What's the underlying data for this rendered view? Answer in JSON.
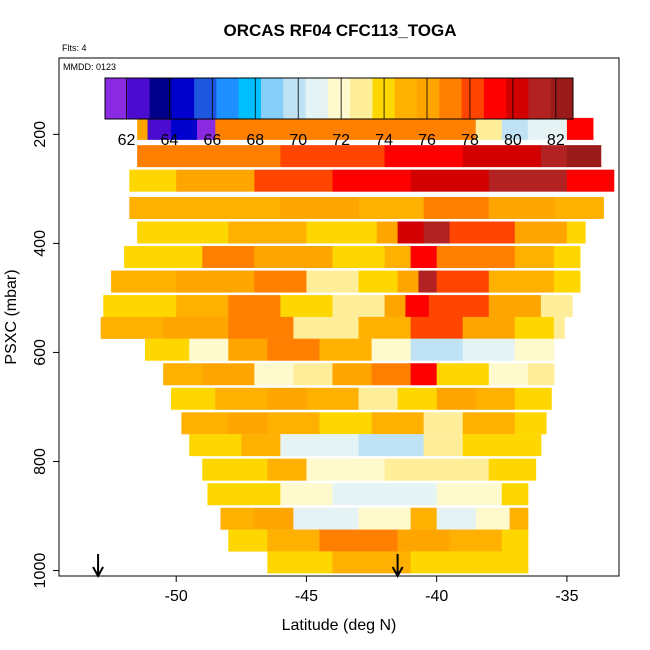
{
  "chart_data": {
    "type": "heatmap",
    "title": "ORCAS RF04 CFC113_TOGA",
    "flights_note": "Flts: 4",
    "date_note": "MMDD: 0123",
    "xlabel": "Latitude (deg N)",
    "ylabel": "PSXC (mbar)",
    "xlim": [
      -54.5,
      -33
    ],
    "ylim": [
      1010,
      60
    ],
    "xticks": [
      -50,
      -45,
      -40,
      -35
    ],
    "yticks": [
      200,
      400,
      600,
      800,
      1000
    ],
    "colorbar": {
      "min": 61,
      "max": 82.8,
      "ticks": [
        62,
        64,
        66,
        68,
        70,
        72,
        74,
        76,
        78,
        80,
        82
      ],
      "colors": [
        "#8a2be2",
        "#4b0ccf",
        "#00008b",
        "#0000cd",
        "#1e56e0",
        "#1e90ff",
        "#00bfff",
        "#87cefa",
        "#bfe3f5",
        "#e6f3f5",
        "#fffacd",
        "#ffee99",
        "#ffd700",
        "#ffb000",
        "#ffa500",
        "#ff7f00",
        "#ff4500",
        "#ff0000",
        "#d20000",
        "#b22222",
        "#9b1b1b"
      ]
    },
    "layers": [
      {
        "p": 190,
        "lat_start": -51.5,
        "lat_end": -34,
        "segments": [
          [
            -51.5,
            76.5
          ],
          [
            -51.1,
            63
          ],
          [
            -50.2,
            65
          ],
          [
            -49.2,
            62
          ],
          [
            -48.5,
            77
          ],
          [
            -43,
            77.5
          ],
          [
            -38.5,
            73
          ],
          [
            -37.5,
            69.5
          ],
          [
            -36.5,
            71
          ],
          [
            -35,
            79
          ]
        ]
      },
      {
        "p": 240,
        "lat_start": -51.5,
        "lat_end": -33.7,
        "segments": [
          [
            -51.5,
            77.2
          ],
          [
            -46,
            78
          ],
          [
            -42,
            79
          ],
          [
            -39,
            80
          ],
          [
            -36,
            81
          ],
          [
            -35,
            82.5
          ]
        ]
      },
      {
        "p": 285,
        "lat_start": -51.8,
        "lat_end": -33.2,
        "segments": [
          [
            -51.8,
            74
          ],
          [
            -50,
            76.5
          ],
          [
            -47,
            78.5
          ],
          [
            -44,
            79.5
          ],
          [
            -41,
            80.3
          ],
          [
            -38,
            81
          ],
          [
            -35,
            79.5
          ]
        ]
      },
      {
        "p": 335,
        "lat_start": -51.8,
        "lat_end": -33.6,
        "segments": [
          [
            -51.8,
            74.5
          ],
          [
            -49,
            75.5
          ],
          [
            -46,
            76.5
          ],
          [
            -43,
            75
          ],
          [
            -40.5,
            77.5
          ],
          [
            -38,
            76.5
          ],
          [
            -35.5,
            75.5
          ]
        ]
      },
      {
        "p": 380,
        "lat_start": -51.5,
        "lat_end": -34.3,
        "segments": [
          [
            -51.5,
            74
          ],
          [
            -48,
            75
          ],
          [
            -45,
            73.5
          ],
          [
            -42.3,
            76
          ],
          [
            -41.5,
            80
          ],
          [
            -40.5,
            81.5
          ],
          [
            -39.5,
            78
          ],
          [
            -37,
            76
          ],
          [
            -35,
            74
          ]
        ]
      },
      {
        "p": 425,
        "lat_start": -52,
        "lat_end": -34.5,
        "segments": [
          [
            -52,
            73.5
          ],
          [
            -49,
            77
          ],
          [
            -47,
            76
          ],
          [
            -44,
            74
          ],
          [
            -42,
            75
          ],
          [
            -41,
            79
          ],
          [
            -40,
            77
          ],
          [
            -37,
            75
          ],
          [
            -35.5,
            73.5
          ]
        ]
      },
      {
        "p": 470,
        "lat_start": -52.5,
        "lat_end": -34.5,
        "segments": [
          [
            -52.5,
            74.5
          ],
          [
            -50,
            76.5
          ],
          [
            -47,
            77
          ],
          [
            -45,
            73
          ],
          [
            -43,
            74
          ],
          [
            -41.5,
            76.5
          ],
          [
            -40.7,
            81
          ],
          [
            -40,
            78.5
          ],
          [
            -38,
            74.5
          ],
          [
            -35.5,
            73.5
          ]
        ]
      },
      {
        "p": 515,
        "lat_start": -52.8,
        "lat_end": -34.8,
        "segments": [
          [
            -52.8,
            74
          ],
          [
            -50,
            75.5
          ],
          [
            -48,
            77.5
          ],
          [
            -46,
            74
          ],
          [
            -44,
            72.5
          ],
          [
            -42,
            76
          ],
          [
            -41.2,
            79.5
          ],
          [
            -40.3,
            78
          ],
          [
            -38,
            76
          ],
          [
            -36,
            73
          ]
        ]
      },
      {
        "p": 555,
        "lat_start": -52.9,
        "lat_end": -35.1,
        "segments": [
          [
            -52.9,
            74.5
          ],
          [
            -50.5,
            76
          ],
          [
            -48,
            77
          ],
          [
            -45.5,
            73
          ],
          [
            -43,
            75.5
          ],
          [
            -41,
            78
          ],
          [
            -39,
            76
          ],
          [
            -37,
            74
          ],
          [
            -35.5,
            73
          ]
        ]
      },
      {
        "p": 595,
        "lat_start": -51.2,
        "lat_end": -35.5,
        "segments": [
          [
            -51.2,
            73.5
          ],
          [
            -49.5,
            72
          ],
          [
            -48,
            76
          ],
          [
            -46.5,
            77
          ],
          [
            -44.5,
            74.5
          ],
          [
            -42.5,
            71.5
          ],
          [
            -41,
            70
          ],
          [
            -39,
            70.5
          ],
          [
            -37,
            71.5
          ],
          [
            -36,
            72
          ]
        ]
      },
      {
        "p": 640,
        "lat_start": -50.5,
        "lat_end": -35.5,
        "segments": [
          [
            -50.5,
            75
          ],
          [
            -49,
            76
          ],
          [
            -47,
            71.5
          ],
          [
            -45.5,
            73
          ],
          [
            -44,
            76.5
          ],
          [
            -42.5,
            77
          ],
          [
            -41,
            79
          ],
          [
            -40,
            74
          ],
          [
            -38,
            72
          ],
          [
            -36.5,
            73
          ]
        ]
      },
      {
        "p": 685,
        "lat_start": -50.2,
        "lat_end": -35.6,
        "segments": [
          [
            -50.2,
            74
          ],
          [
            -48.5,
            74.5
          ],
          [
            -46.5,
            76
          ],
          [
            -45,
            74.5
          ],
          [
            -43,
            73
          ],
          [
            -41.5,
            74
          ],
          [
            -40,
            76
          ],
          [
            -38.5,
            74.5
          ],
          [
            -37,
            73.5
          ]
        ]
      },
      {
        "p": 730,
        "lat_start": -49.8,
        "lat_end": -35.8,
        "segments": [
          [
            -49.8,
            74.5
          ],
          [
            -48,
            76
          ],
          [
            -46.5,
            75
          ],
          [
            -44.5,
            74
          ],
          [
            -42.5,
            75.5
          ],
          [
            -40.5,
            73
          ],
          [
            -39,
            74.5
          ],
          [
            -37,
            73.5
          ]
        ]
      },
      {
        "p": 770,
        "lat_start": -49.5,
        "lat_end": -36,
        "segments": [
          [
            -49.5,
            74
          ],
          [
            -47.5,
            75.5
          ],
          [
            -46,
            70.5
          ],
          [
            -43,
            70
          ],
          [
            -40.5,
            73
          ],
          [
            -39,
            73.5
          ],
          [
            -37.5,
            74
          ]
        ]
      },
      {
        "p": 815,
        "lat_start": -49,
        "lat_end": -36.2,
        "segments": [
          [
            -49,
            74
          ],
          [
            -46.5,
            75
          ],
          [
            -45,
            71.5
          ],
          [
            -42,
            72.5
          ],
          [
            -40,
            73
          ],
          [
            -38,
            74
          ]
        ]
      },
      {
        "p": 860,
        "lat_start": -48.8,
        "lat_end": -36.5,
        "segments": [
          [
            -48.8,
            73.5
          ],
          [
            -46,
            72
          ],
          [
            -44,
            71
          ],
          [
            -40,
            72
          ],
          [
            -37.5,
            74
          ]
        ]
      },
      {
        "p": 905,
        "lat_start": -48.3,
        "lat_end": -36.5,
        "segments": [
          [
            -48.3,
            74.5
          ],
          [
            -47,
            76
          ],
          [
            -45.5,
            71
          ],
          [
            -43,
            71.5
          ],
          [
            -41,
            75
          ],
          [
            -40,
            70.5
          ],
          [
            -38.5,
            72
          ],
          [
            -37.2,
            75
          ]
        ]
      },
      {
        "p": 945,
        "lat_start": -48,
        "lat_end": -36.5,
        "segments": [
          [
            -48,
            73.5
          ],
          [
            -46.5,
            75
          ],
          [
            -44.5,
            77
          ],
          [
            -41.5,
            76.5
          ],
          [
            -39.5,
            74.5
          ],
          [
            -37.5,
            73.5
          ]
        ]
      },
      {
        "p": 985,
        "lat_start": -46.5,
        "lat_end": -36.5,
        "segments": [
          [
            -46.5,
            74
          ],
          [
            -44,
            74.5
          ],
          [
            -41,
            74
          ],
          [
            -38.5,
            73.5
          ]
        ]
      }
    ],
    "markers": [
      {
        "lat": -53,
        "label": "arrow"
      },
      {
        "lat": -41.5,
        "label": "arrow"
      }
    ]
  }
}
